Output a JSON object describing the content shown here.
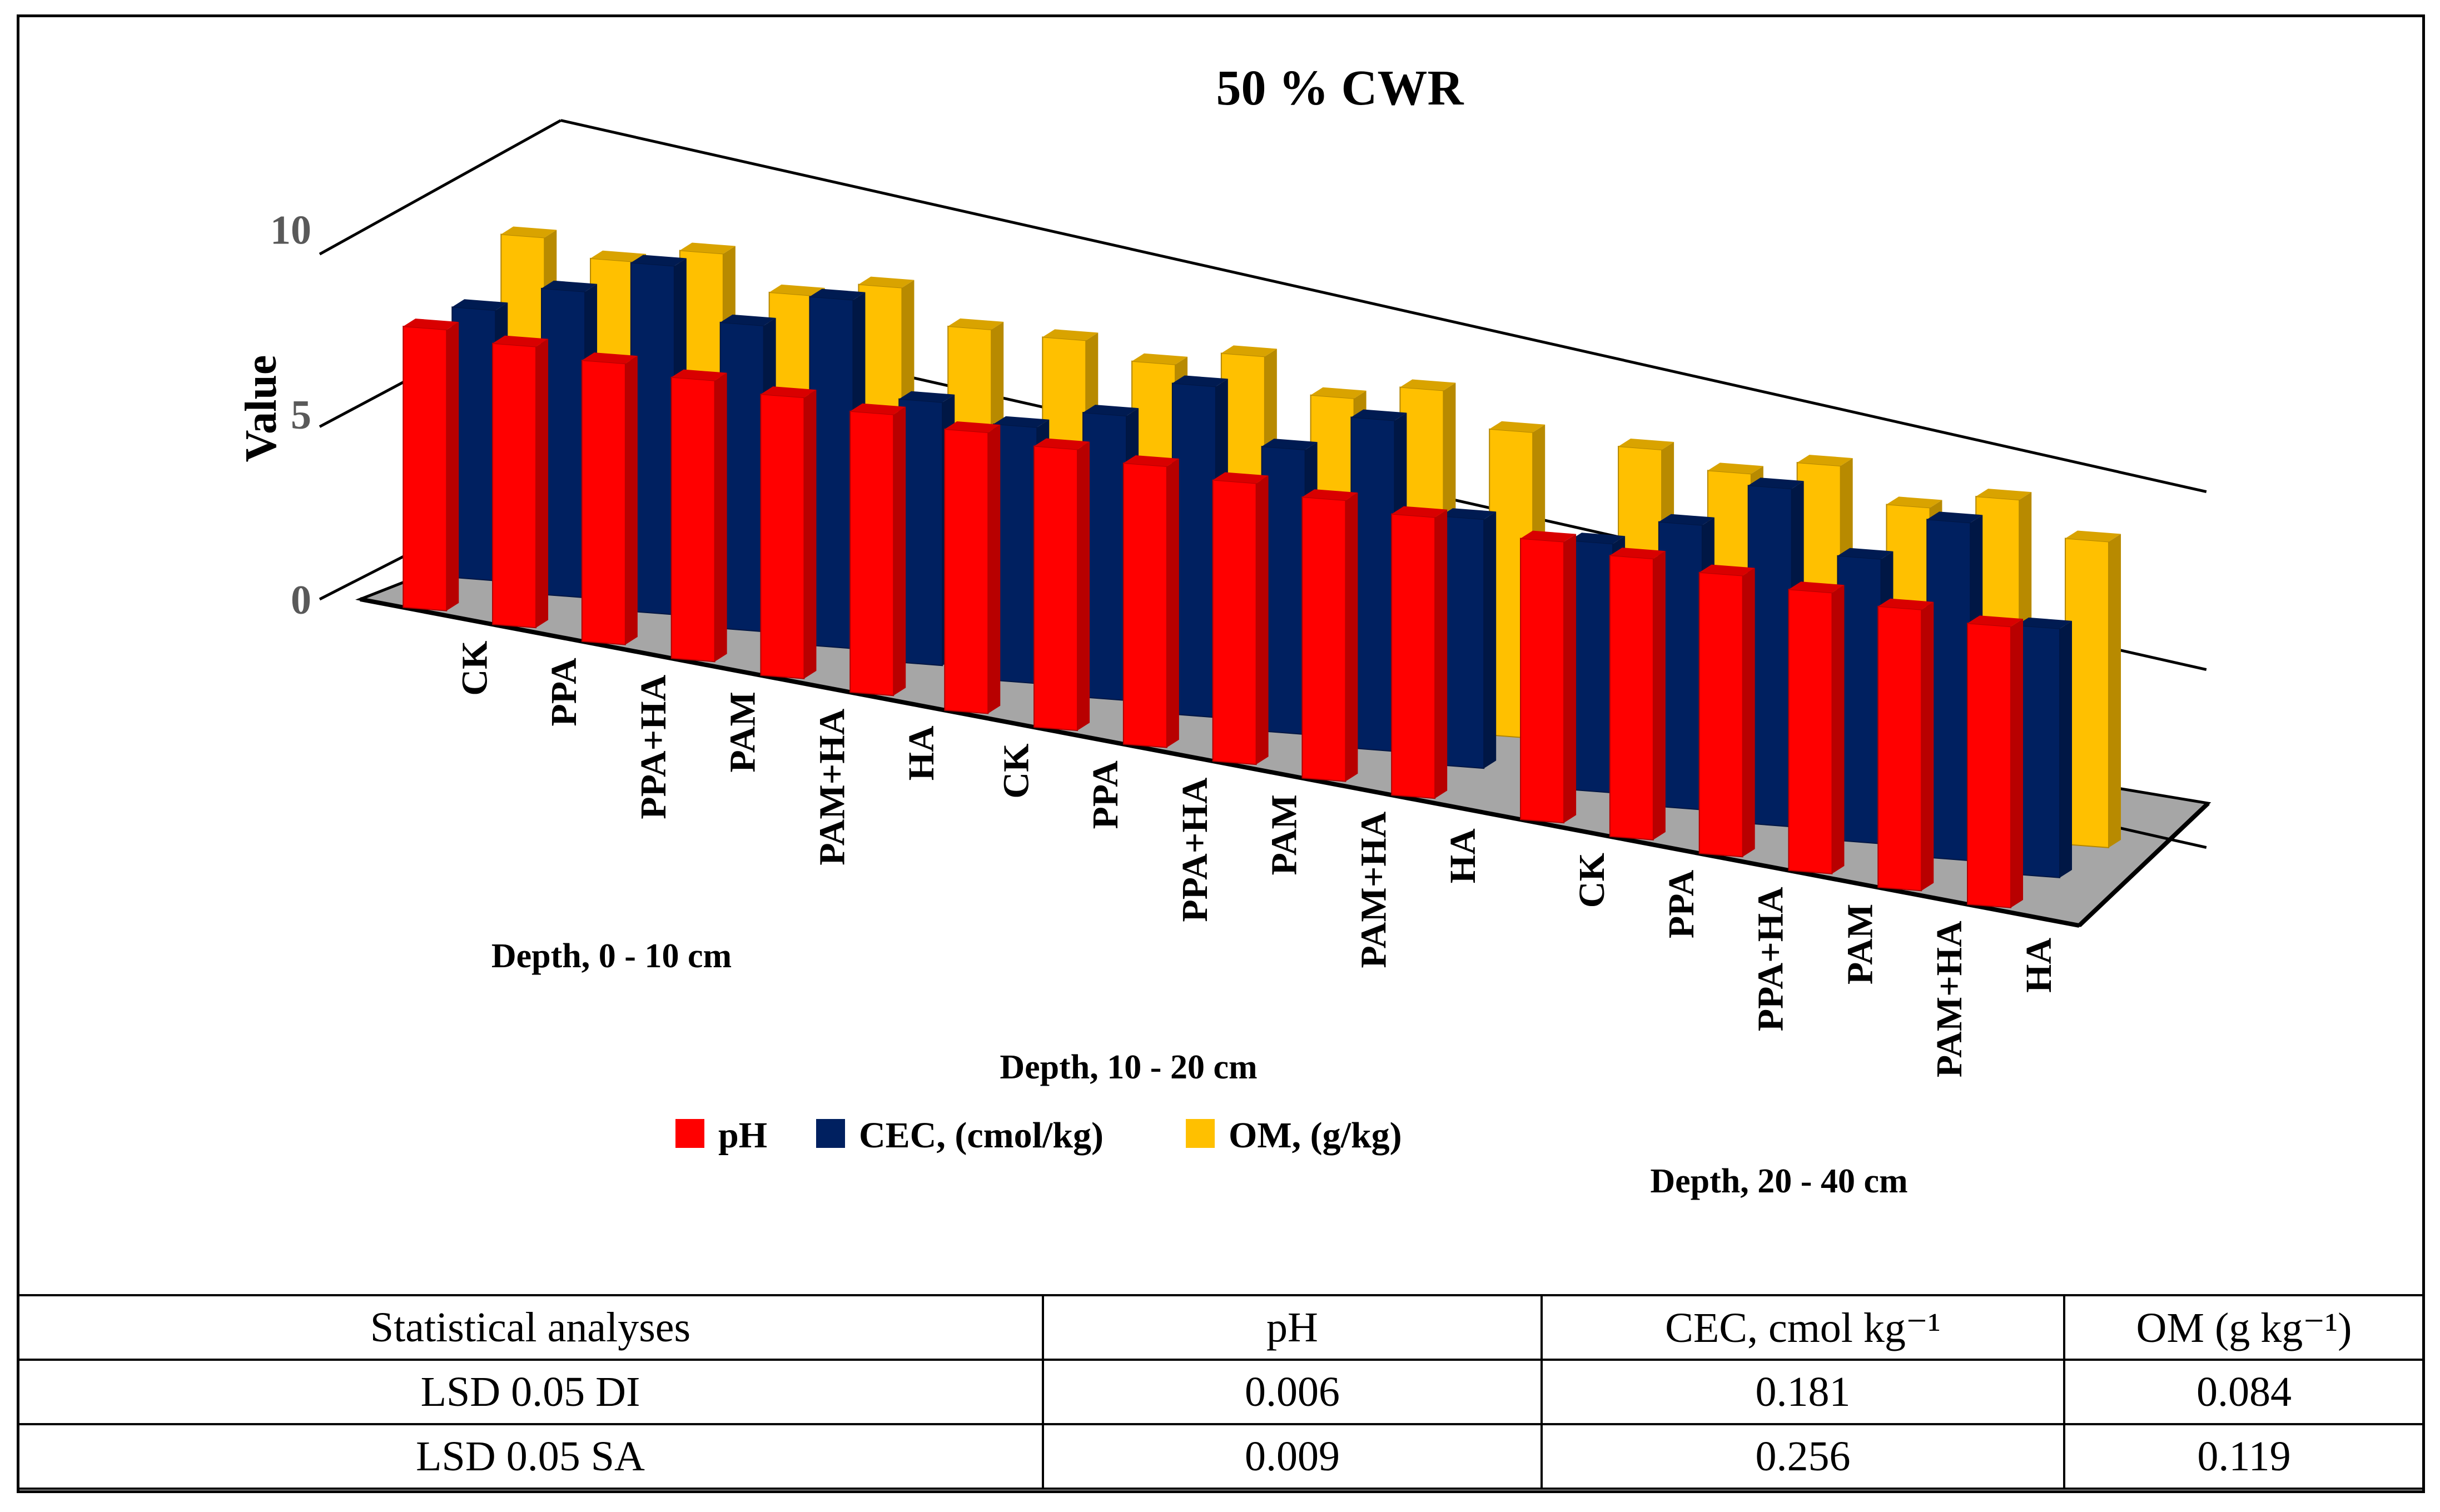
{
  "chart_data": {
    "type": "bar",
    "subtype": "3d-clustered-column",
    "title": "50 % CWR",
    "ylabel": "Value",
    "ylim": [
      0,
      10
    ],
    "yticks": [
      "0",
      "5",
      "10"
    ],
    "groups": [
      {
        "name": "Depth, 0 - 10 cm",
        "categories": [
          "CK",
          "PPA",
          "PPA+HA",
          "PAM",
          "PAM+HA",
          "HA"
        ]
      },
      {
        "name": "Depth, 10 - 20 cm",
        "categories": [
          "CK",
          "PPA",
          "PPA+HA",
          "PAM",
          "PAM+HA",
          "HA"
        ]
      },
      {
        "name": "Depth, 20 - 40 cm",
        "categories": [
          "CK",
          "PPA",
          "PPA+HA",
          "PAM",
          "PAM+HA",
          "HA"
        ]
      }
    ],
    "series": [
      {
        "name": "pH",
        "color": "#ff0000",
        "values": [
          7.9,
          7.9,
          7.9,
          7.9,
          7.9,
          7.9,
          7.9,
          7.9,
          7.9,
          7.9,
          7.9,
          7.9,
          7.9,
          7.9,
          7.9,
          7.9,
          7.9,
          7.9
        ]
      },
      {
        "name": "CEC, (cmol/kg)",
        "color": "#002060",
        "values": [
          7.6,
          8.6,
          9.8,
          8.6,
          9.8,
          7.4,
          7.2,
          8.0,
          9.3,
          8.0,
          9.3,
          7.0,
          7.0,
          8.0,
          9.5,
          8.0,
          9.5,
          7.0
        ]
      },
      {
        "name": "OM, (g/kg)",
        "color": "#ffc000",
        "values": [
          8.8,
          8.6,
          9.3,
          8.6,
          9.3,
          8.6,
          8.8,
          8.6,
          9.3,
          8.6,
          9.3,
          8.6,
          8.8,
          8.6,
          9.3,
          8.6,
          9.3,
          8.6
        ]
      }
    ],
    "legend": {
      "position": "bottom-center",
      "entries": [
        "pH",
        "CEC, (cmol/kg)",
        "OM, (g/kg)"
      ]
    },
    "grid": true
  },
  "table": {
    "headers": [
      "Statistical analyses",
      "pH",
      "CEC, cmol kg⁻¹",
      "OM (g kg⁻¹)"
    ],
    "rows": [
      [
        "LSD 0.05 DI",
        "0.006",
        "0.181",
        "0.084"
      ],
      [
        "LSD 0.05 SA",
        "0.009",
        "0.256",
        "0.119"
      ]
    ]
  }
}
